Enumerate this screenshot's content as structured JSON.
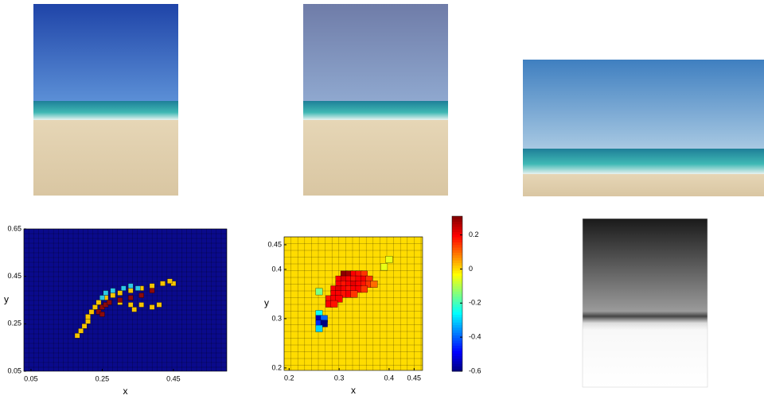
{
  "plot_left": {
    "xlabel": "x",
    "ylabel": "y",
    "xlim": [
      0.03,
      0.6
    ],
    "ylim": [
      0.05,
      0.65
    ],
    "xticks": [
      0.05,
      0.25,
      0.45
    ],
    "yticks": [
      0.05,
      0.25,
      0.45,
      0.65
    ],
    "background_color": "#0a0a8c",
    "cells": [
      {
        "x": 0.18,
        "y": 0.2,
        "color": "#f5c400"
      },
      {
        "x": 0.19,
        "y": 0.22,
        "color": "#f5c400"
      },
      {
        "x": 0.2,
        "y": 0.24,
        "color": "#f5c400"
      },
      {
        "x": 0.21,
        "y": 0.26,
        "color": "#f5c400"
      },
      {
        "x": 0.21,
        "y": 0.28,
        "color": "#f5c400"
      },
      {
        "x": 0.22,
        "y": 0.3,
        "color": "#f5c400"
      },
      {
        "x": 0.23,
        "y": 0.32,
        "color": "#f5c400"
      },
      {
        "x": 0.24,
        "y": 0.34,
        "color": "#f5c400"
      },
      {
        "x": 0.26,
        "y": 0.36,
        "color": "#f5c400"
      },
      {
        "x": 0.28,
        "y": 0.37,
        "color": "#f5c400"
      },
      {
        "x": 0.3,
        "y": 0.38,
        "color": "#f5c400"
      },
      {
        "x": 0.33,
        "y": 0.39,
        "color": "#f5c400"
      },
      {
        "x": 0.36,
        "y": 0.4,
        "color": "#f5c400"
      },
      {
        "x": 0.39,
        "y": 0.41,
        "color": "#f5c400"
      },
      {
        "x": 0.42,
        "y": 0.42,
        "color": "#f5c400"
      },
      {
        "x": 0.45,
        "y": 0.42,
        "color": "#f5c400"
      },
      {
        "x": 0.44,
        "y": 0.43,
        "color": "#f5c400"
      },
      {
        "x": 0.3,
        "y": 0.34,
        "color": "#f5c400"
      },
      {
        "x": 0.33,
        "y": 0.33,
        "color": "#f5c400"
      },
      {
        "x": 0.36,
        "y": 0.33,
        "color": "#f5c400"
      },
      {
        "x": 0.39,
        "y": 0.32,
        "color": "#f5c400"
      },
      {
        "x": 0.41,
        "y": 0.33,
        "color": "#f5c400"
      },
      {
        "x": 0.34,
        "y": 0.31,
        "color": "#f5c400"
      },
      {
        "x": 0.24,
        "y": 0.3,
        "color": "#8b0a0a"
      },
      {
        "x": 0.25,
        "y": 0.32,
        "color": "#8b0a0a"
      },
      {
        "x": 0.26,
        "y": 0.33,
        "color": "#8b0a0a"
      },
      {
        "x": 0.27,
        "y": 0.34,
        "color": "#8b0a0a"
      },
      {
        "x": 0.3,
        "y": 0.35,
        "color": "#8b0a0a"
      },
      {
        "x": 0.33,
        "y": 0.36,
        "color": "#8b0a0a"
      },
      {
        "x": 0.36,
        "y": 0.37,
        "color": "#8b0a0a"
      },
      {
        "x": 0.39,
        "y": 0.39,
        "color": "#8b0a0a"
      },
      {
        "x": 0.25,
        "y": 0.29,
        "color": "#8b0a0a"
      },
      {
        "x": 0.26,
        "y": 0.38,
        "color": "#2ec8e6"
      },
      {
        "x": 0.28,
        "y": 0.39,
        "color": "#2ec8e6"
      },
      {
        "x": 0.31,
        "y": 0.4,
        "color": "#2ec8e6"
      },
      {
        "x": 0.33,
        "y": 0.41,
        "color": "#2ec8e6"
      },
      {
        "x": 0.35,
        "y": 0.4,
        "color": "#2ec8e6"
      },
      {
        "x": 0.25,
        "y": 0.36,
        "color": "#2ec8e6"
      }
    ]
  },
  "plot_right": {
    "xlabel": "x",
    "ylabel": "y",
    "xlim": [
      0.19,
      0.467
    ],
    "ylim": [
      0.195,
      0.466
    ],
    "xticks": [
      0.2,
      0.3,
      0.4,
      0.45
    ],
    "yticks": [
      0.2,
      0.3,
      0.4,
      0.45
    ],
    "clim": [
      -0.6,
      0.31
    ],
    "colorbar_ticks": [
      -0.6,
      -0.4,
      -0.2,
      0,
      0.2
    ],
    "background_value": 0,
    "cells": [
      {
        "x": 0.31,
        "y": 0.39,
        "v": 0.3
      },
      {
        "x": 0.32,
        "y": 0.39,
        "v": 0.28
      },
      {
        "x": 0.33,
        "y": 0.39,
        "v": 0.2
      },
      {
        "x": 0.34,
        "y": 0.39,
        "v": 0.18
      },
      {
        "x": 0.35,
        "y": 0.39,
        "v": 0.15
      },
      {
        "x": 0.3,
        "y": 0.38,
        "v": 0.2
      },
      {
        "x": 0.31,
        "y": 0.38,
        "v": 0.22
      },
      {
        "x": 0.32,
        "y": 0.38,
        "v": 0.2
      },
      {
        "x": 0.33,
        "y": 0.38,
        "v": 0.18
      },
      {
        "x": 0.34,
        "y": 0.38,
        "v": 0.2
      },
      {
        "x": 0.35,
        "y": 0.38,
        "v": 0.2
      },
      {
        "x": 0.36,
        "y": 0.38,
        "v": 0.15
      },
      {
        "x": 0.3,
        "y": 0.37,
        "v": 0.2
      },
      {
        "x": 0.31,
        "y": 0.37,
        "v": 0.18
      },
      {
        "x": 0.32,
        "y": 0.37,
        "v": 0.2
      },
      {
        "x": 0.33,
        "y": 0.37,
        "v": 0.22
      },
      {
        "x": 0.34,
        "y": 0.37,
        "v": 0.2
      },
      {
        "x": 0.35,
        "y": 0.37,
        "v": 0.18
      },
      {
        "x": 0.36,
        "y": 0.37,
        "v": 0.15
      },
      {
        "x": 0.37,
        "y": 0.37,
        "v": 0.1
      },
      {
        "x": 0.29,
        "y": 0.36,
        "v": 0.2
      },
      {
        "x": 0.3,
        "y": 0.36,
        "v": 0.22
      },
      {
        "x": 0.31,
        "y": 0.36,
        "v": 0.2
      },
      {
        "x": 0.32,
        "y": 0.36,
        "v": 0.18
      },
      {
        "x": 0.33,
        "y": 0.36,
        "v": 0.2
      },
      {
        "x": 0.34,
        "y": 0.36,
        "v": 0.2
      },
      {
        "x": 0.35,
        "y": 0.36,
        "v": 0.15
      },
      {
        "x": 0.29,
        "y": 0.35,
        "v": 0.2
      },
      {
        "x": 0.3,
        "y": 0.35,
        "v": 0.2
      },
      {
        "x": 0.31,
        "y": 0.35,
        "v": 0.18
      },
      {
        "x": 0.32,
        "y": 0.35,
        "v": 0.2
      },
      {
        "x": 0.33,
        "y": 0.35,
        "v": 0.15
      },
      {
        "x": 0.28,
        "y": 0.34,
        "v": 0.18
      },
      {
        "x": 0.29,
        "y": 0.34,
        "v": 0.2
      },
      {
        "x": 0.3,
        "y": 0.34,
        "v": 0.2
      },
      {
        "x": 0.28,
        "y": 0.33,
        "v": 0.2
      },
      {
        "x": 0.29,
        "y": 0.33,
        "v": 0.18
      },
      {
        "x": 0.26,
        "y": 0.355,
        "v": -0.15
      },
      {
        "x": 0.39,
        "y": 0.405,
        "v": -0.05
      },
      {
        "x": 0.4,
        "y": 0.42,
        "v": -0.05
      },
      {
        "x": 0.26,
        "y": 0.31,
        "v": -0.25
      },
      {
        "x": 0.26,
        "y": 0.3,
        "v": -0.55
      },
      {
        "x": 0.27,
        "y": 0.3,
        "v": -0.4
      },
      {
        "x": 0.26,
        "y": 0.29,
        "v": -0.45
      },
      {
        "x": 0.27,
        "y": 0.29,
        "v": -0.6
      },
      {
        "x": 0.26,
        "y": 0.28,
        "v": -0.3
      }
    ]
  }
}
